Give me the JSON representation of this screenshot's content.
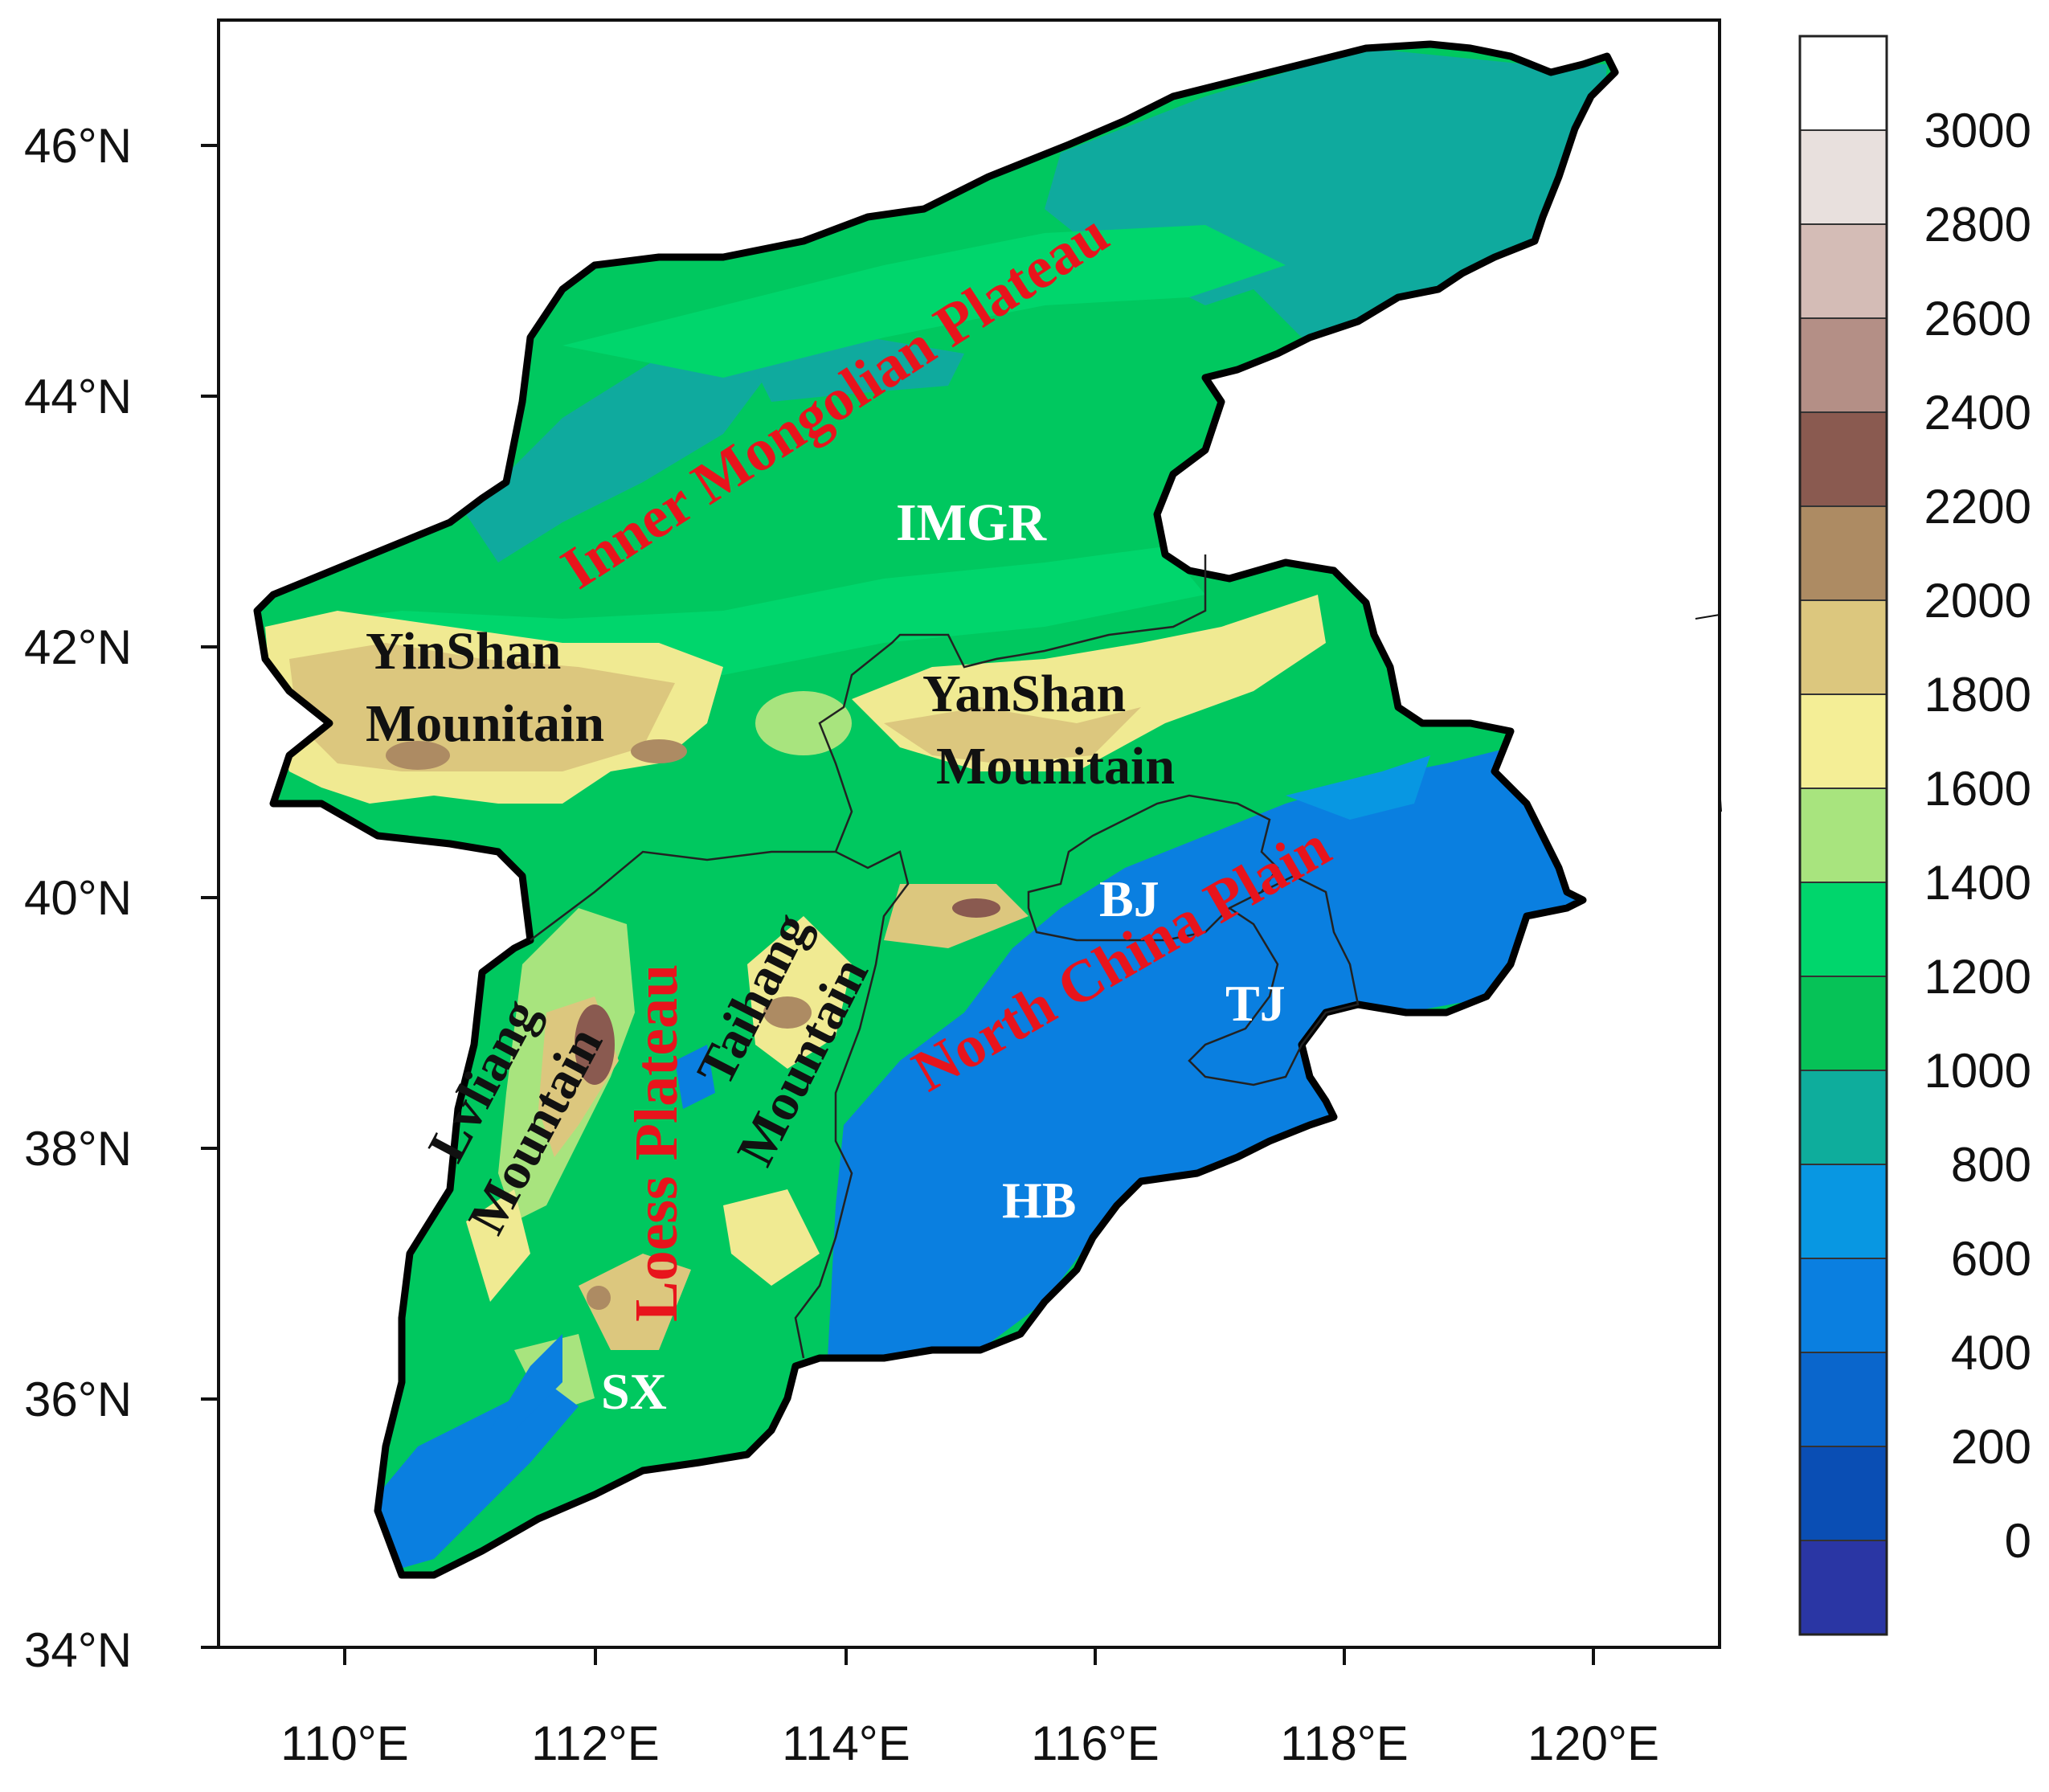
{
  "map": {
    "y_axis_labels": [
      {
        "lat": 46,
        "text": "46°N"
      },
      {
        "lat": 44,
        "text": "44°N"
      },
      {
        "lat": 42,
        "text": "42°N"
      },
      {
        "lat": 40,
        "text": "40°N"
      },
      {
        "lat": 38,
        "text": "38°N"
      },
      {
        "lat": 36,
        "text": "36°N"
      },
      {
        "lat": 34,
        "text": "34°N"
      }
    ],
    "x_axis_labels": [
      {
        "lon": 110,
        "text": "110°E"
      },
      {
        "lon": 112,
        "text": "112°E"
      },
      {
        "lon": 114,
        "text": "114°E"
      },
      {
        "lon": 116,
        "text": "116°E"
      },
      {
        "lon": 118,
        "text": "118°E"
      },
      {
        "lon": 120,
        "text": "120°E"
      }
    ],
    "colorbar": {
      "levels": [
        "3000",
        "2800",
        "2600",
        "2400",
        "2200",
        "2000",
        "1800",
        "1600",
        "1400",
        "1200",
        "1000",
        "800",
        "600",
        "400",
        "200",
        "0"
      ],
      "colors": [
        "#ffffff",
        "#e8e0dd",
        "#d4bcb6",
        "#b48f86",
        "#8a5a50",
        "#ad8b63",
        "#dcc77e",
        "#f4ee96",
        "#a8e47e",
        "#00d66c",
        "#06c257",
        "#0ead9c",
        "#0897e2",
        "#0a7fe0",
        "#0a66cc",
        "#0a4eb4",
        "#2a36a4"
      ]
    },
    "labels": {
      "inner_mongolian_plateau": "Inner Mongolian Plateau",
      "imgr": "IMGR",
      "yinshan": "YinShan",
      "yinshan_mountain": "Mounitain",
      "yanshan": "YanShan",
      "yanshan_mountain": "Mounitain",
      "bj": "BJ",
      "tj": "TJ",
      "north_china_plain": "North China Plain",
      "hb": "HB",
      "lvliang": "Lvliang",
      "lvliang_mountain": "Mountain",
      "loess_plateau": "Loess Plateau",
      "taihang": "Taihang",
      "taihang_mountain": "Mountain",
      "sx": "SX"
    },
    "colors": {
      "red_label": "#e8141c",
      "white_label": "#ffffff",
      "black_label": "#111111"
    }
  }
}
